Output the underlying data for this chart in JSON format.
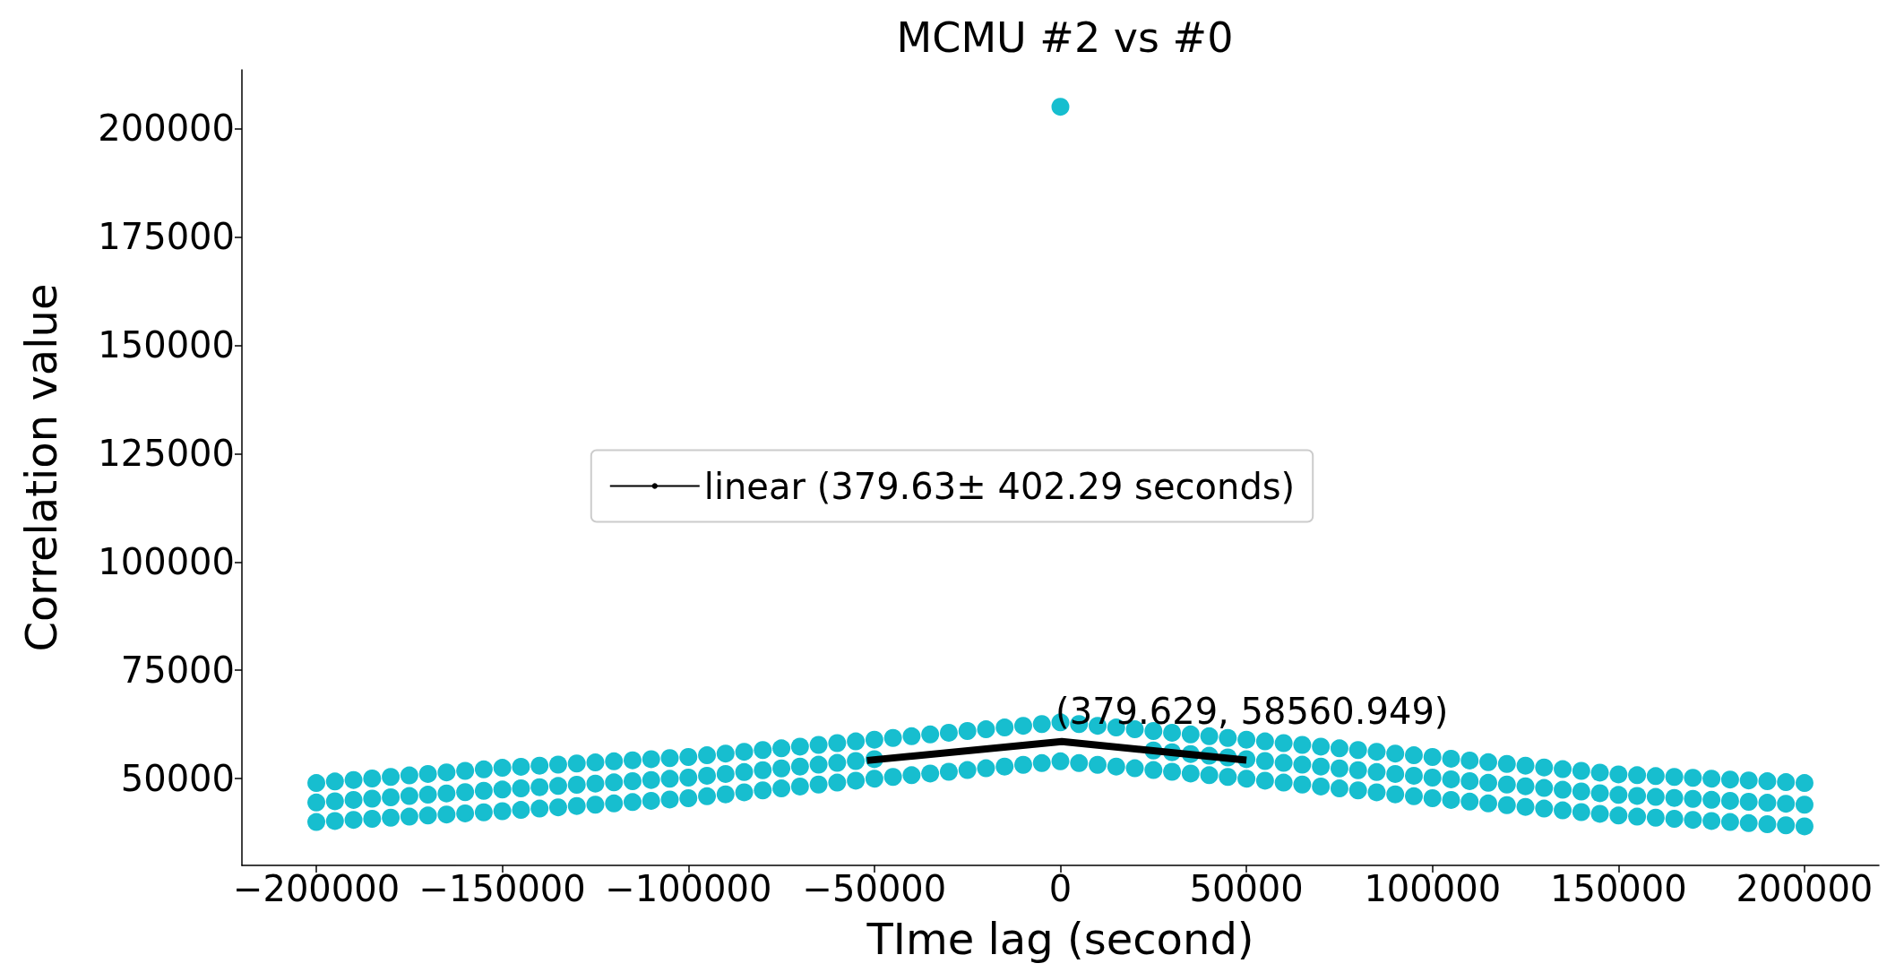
{
  "chart_data": {
    "type": "scatter",
    "title": "MCMU #2 vs #0",
    "xlabel": "TIme lag (second)",
    "ylabel": "Correlation value",
    "xlim": [
      -220000,
      220000
    ],
    "xticks": [
      -200000,
      -150000,
      -100000,
      -50000,
      0,
      50000,
      100000,
      150000,
      200000
    ],
    "ylim": [
      30000,
      213500
    ],
    "yticks": [
      50000,
      75000,
      100000,
      125000,
      150000,
      175000,
      200000
    ],
    "grid": false,
    "legend": "center",
    "marker": "circle",
    "x": [
      -200000,
      -195000,
      -190000,
      -185000,
      -180000,
      -175000,
      -170000,
      -165000,
      -160000,
      -155000,
      -150000,
      -145000,
      -140000,
      -135000,
      -130000,
      -125000,
      -120000,
      -115000,
      -110000,
      -105000,
      -100000,
      -95000,
      -90000,
      -85000,
      -80000,
      -75000,
      -70000,
      -65000,
      -60000,
      -55000,
      -50000,
      -45000,
      -40000,
      -35000,
      -30000,
      -25000,
      -20000,
      -15000,
      -10000,
      -5000,
      0,
      5000,
      10000,
      15000,
      20000,
      25000,
      30000,
      35000,
      40000,
      45000,
      50000,
      55000,
      60000,
      65000,
      70000,
      75000,
      80000,
      85000,
      90000,
      95000,
      100000,
      105000,
      110000,
      115000,
      120000,
      125000,
      130000,
      135000,
      140000,
      145000,
      150000,
      155000,
      160000,
      165000,
      170000,
      175000,
      180000,
      185000,
      190000,
      195000,
      200000
    ],
    "series": [
      {
        "color": "#17becf",
        "values": [
          49000,
          49350,
          49700,
          50050,
          50400,
          50750,
          51100,
          51450,
          51800,
          52150,
          52500,
          52750,
          53000,
          53250,
          53500,
          53750,
          54000,
          54250,
          54500,
          54750,
          55000,
          55400,
          55800,
          56200,
          56600,
          57000,
          57400,
          57800,
          58200,
          58600,
          59000,
          59400,
          59800,
          60200,
          60600,
          61000,
          61400,
          61800,
          62200,
          62600,
          63000,
          62600,
          62200,
          61800,
          61400,
          61000,
          60600,
          60200,
          59800,
          59400,
          59000,
          58600,
          58200,
          57800,
          57400,
          57000,
          56600,
          56200,
          55800,
          55400,
          55000,
          54600,
          54200,
          53800,
          53400,
          53000,
          52600,
          52200,
          51800,
          51400,
          51000,
          50800,
          50600,
          50400,
          50200,
          50000,
          49800,
          49600,
          49400,
          49200,
          49000
        ]
      },
      {
        "color": "#17becf",
        "values": [
          44500,
          44800,
          45100,
          45400,
          45700,
          46000,
          46300,
          46600,
          46900,
          47200,
          47500,
          47775,
          48050,
          48325,
          48600,
          48875,
          49150,
          49425,
          49700,
          49975,
          50250,
          50675,
          51100,
          51525,
          51950,
          52375,
          52800,
          53225,
          53650,
          54075,
          54500,
          null,
          null,
          null,
          null,
          null,
          null,
          null,
          null,
          null,
          null,
          null,
          null,
          null,
          null,
          56500,
          56100,
          55700,
          55300,
          54900,
          54500,
          54075,
          53650,
          53225,
          52800,
          52375,
          51950,
          51525,
          51100,
          50675,
          50250,
          49850,
          49450,
          49050,
          48650,
          48250,
          47850,
          47450,
          47050,
          46650,
          46250,
          46025,
          45800,
          45575,
          45350,
          45125,
          44900,
          44675,
          44450,
          44225,
          44000
        ]
      },
      {
        "color": "#17becf",
        "values": [
          40000,
          40250,
          40500,
          40750,
          41000,
          41250,
          41500,
          41750,
          42000,
          42250,
          42500,
          42800,
          43100,
          43400,
          43700,
          44000,
          44300,
          44600,
          44900,
          45200,
          45500,
          45950,
          46400,
          46850,
          47300,
          47750,
          48200,
          48650,
          49100,
          49550,
          50000,
          50400,
          50800,
          51200,
          51600,
          52000,
          52400,
          52800,
          53200,
          53600,
          54000,
          53600,
          53200,
          52800,
          52400,
          52000,
          51600,
          51200,
          50800,
          50400,
          50000,
          49550,
          49100,
          48650,
          48200,
          47750,
          47300,
          46850,
          46400,
          45950,
          45500,
          45100,
          44700,
          44300,
          43900,
          43500,
          43100,
          42700,
          42300,
          41900,
          41500,
          41250,
          41000,
          40750,
          40500,
          40250,
          40000,
          39750,
          39500,
          39250,
          39000
        ]
      },
      {
        "color": "#17becf",
        "x": [
          0
        ],
        "values": [
          205000
        ]
      },
      {
        "type": "line",
        "name": "linear (379.63± 402.29 seconds)",
        "color": "#000000",
        "marker": "none",
        "x": [
          -52000,
          379.629,
          50000
        ],
        "values": [
          54200,
          58560.949,
          54300
        ]
      }
    ],
    "annotations": [
      {
        "text": "(379.629, 58560.949)",
        "x": 379.629,
        "y": 58560.949
      }
    ]
  }
}
